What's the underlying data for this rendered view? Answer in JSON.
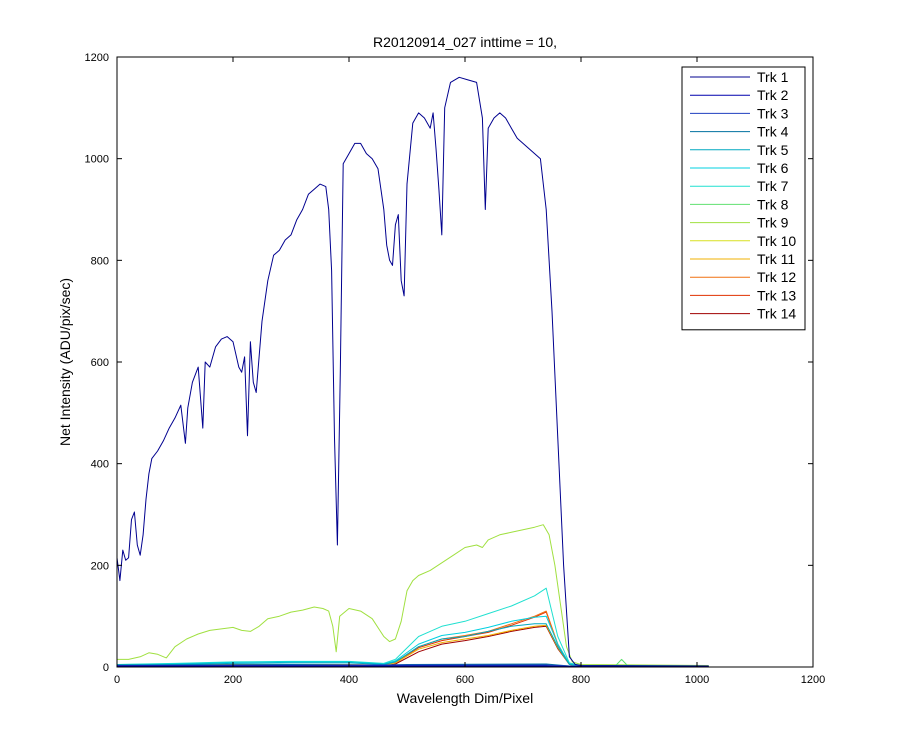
{
  "chart_data": {
    "type": "line",
    "title": "R20120914_027 inttime = 10,",
    "xlabel": "Wavelength Dim/Pixel",
    "ylabel": "Net Intensity (ADU/pix/sec)",
    "xlim": [
      0,
      1200
    ],
    "ylim": [
      0,
      1200
    ],
    "xticks": [
      "0",
      "200",
      "400",
      "600",
      "800",
      "1000",
      "1200"
    ],
    "yticks": [
      "0",
      "200",
      "400",
      "600",
      "800",
      "1000",
      "1200"
    ],
    "grid": false,
    "legend_position": "top-right",
    "series": [
      {
        "name": "Trk 1",
        "color": "#00008F",
        "points": [
          [
            0,
            215
          ],
          [
            5,
            170
          ],
          [
            10,
            230
          ],
          [
            15,
            210
          ],
          [
            20,
            215
          ],
          [
            25,
            290
          ],
          [
            30,
            305
          ],
          [
            35,
            240
          ],
          [
            40,
            220
          ],
          [
            45,
            260
          ],
          [
            50,
            330
          ],
          [
            55,
            380
          ],
          [
            60,
            410
          ],
          [
            70,
            425
          ],
          [
            80,
            445
          ],
          [
            90,
            470
          ],
          [
            100,
            490
          ],
          [
            110,
            515
          ],
          [
            118,
            440
          ],
          [
            122,
            510
          ],
          [
            130,
            560
          ],
          [
            140,
            590
          ],
          [
            148,
            470
          ],
          [
            152,
            600
          ],
          [
            160,
            590
          ],
          [
            170,
            630
          ],
          [
            180,
            645
          ],
          [
            190,
            650
          ],
          [
            200,
            640
          ],
          [
            210,
            590
          ],
          [
            215,
            580
          ],
          [
            220,
            610
          ],
          [
            225,
            455
          ],
          [
            230,
            640
          ],
          [
            235,
            560
          ],
          [
            240,
            540
          ],
          [
            250,
            680
          ],
          [
            260,
            760
          ],
          [
            270,
            810
          ],
          [
            280,
            820
          ],
          [
            290,
            840
          ],
          [
            300,
            850
          ],
          [
            310,
            880
          ],
          [
            320,
            900
          ],
          [
            330,
            930
          ],
          [
            340,
            940
          ],
          [
            350,
            950
          ],
          [
            360,
            945
          ],
          [
            365,
            900
          ],
          [
            370,
            780
          ],
          [
            375,
            450
          ],
          [
            380,
            240
          ],
          [
            385,
            580
          ],
          [
            390,
            990
          ],
          [
            400,
            1010
          ],
          [
            410,
            1030
          ],
          [
            420,
            1030
          ],
          [
            430,
            1010
          ],
          [
            440,
            1000
          ],
          [
            450,
            980
          ],
          [
            460,
            900
          ],
          [
            465,
            830
          ],
          [
            470,
            800
          ],
          [
            475,
            790
          ],
          [
            480,
            870
          ],
          [
            485,
            890
          ],
          [
            490,
            760
          ],
          [
            495,
            730
          ],
          [
            500,
            950
          ],
          [
            510,
            1070
          ],
          [
            520,
            1090
          ],
          [
            530,
            1080
          ],
          [
            540,
            1060
          ],
          [
            545,
            1090
          ],
          [
            550,
            1020
          ],
          [
            555,
            940
          ],
          [
            560,
            850
          ],
          [
            565,
            1100
          ],
          [
            575,
            1150
          ],
          [
            590,
            1160
          ],
          [
            605,
            1155
          ],
          [
            620,
            1150
          ],
          [
            630,
            1080
          ],
          [
            635,
            900
          ],
          [
            640,
            1060
          ],
          [
            650,
            1080
          ],
          [
            660,
            1090
          ],
          [
            670,
            1080
          ],
          [
            680,
            1060
          ],
          [
            690,
            1040
          ],
          [
            700,
            1030
          ],
          [
            710,
            1020
          ],
          [
            720,
            1010
          ],
          [
            730,
            1000
          ],
          [
            740,
            900
          ],
          [
            750,
            700
          ],
          [
            760,
            450
          ],
          [
            770,
            200
          ],
          [
            780,
            20
          ],
          [
            790,
            5
          ],
          [
            800,
            3
          ],
          [
            1020,
            2
          ]
        ]
      },
      {
        "name": "Trk 2",
        "color": "#0000AD",
        "points": [
          [
            0,
            2
          ],
          [
            740,
            2
          ],
          [
            780,
            1
          ],
          [
            1020,
            1
          ]
        ]
      },
      {
        "name": "Trk 3",
        "color": "#1F3FBF",
        "points": [
          [
            0,
            3
          ],
          [
            500,
            4
          ],
          [
            740,
            4
          ],
          [
            780,
            2
          ],
          [
            1020,
            2
          ]
        ]
      },
      {
        "name": "Trk 4",
        "color": "#00709F",
        "points": [
          [
            0,
            4
          ],
          [
            100,
            4
          ],
          [
            300,
            5
          ],
          [
            450,
            4
          ],
          [
            500,
            5
          ],
          [
            740,
            6
          ],
          [
            780,
            2
          ],
          [
            1020,
            2
          ]
        ]
      },
      {
        "name": "Trk 5",
        "color": "#00A8C0",
        "points": [
          [
            0,
            3
          ],
          [
            100,
            5
          ],
          [
            200,
            7
          ],
          [
            300,
            8
          ],
          [
            400,
            8
          ],
          [
            460,
            5
          ],
          [
            480,
            10
          ],
          [
            520,
            40
          ],
          [
            560,
            55
          ],
          [
            600,
            60
          ],
          [
            640,
            70
          ],
          [
            680,
            80
          ],
          [
            720,
            85
          ],
          [
            740,
            85
          ],
          [
            760,
            40
          ],
          [
            780,
            5
          ],
          [
            800,
            2
          ],
          [
            1020,
            2
          ]
        ]
      },
      {
        "name": "Trk 6",
        "color": "#00D0E0",
        "points": [
          [
            0,
            4
          ],
          [
            100,
            6
          ],
          [
            200,
            9
          ],
          [
            300,
            10
          ],
          [
            400,
            10
          ],
          [
            460,
            6
          ],
          [
            480,
            12
          ],
          [
            520,
            45
          ],
          [
            560,
            62
          ],
          [
            600,
            68
          ],
          [
            640,
            78
          ],
          [
            680,
            90
          ],
          [
            720,
            98
          ],
          [
            740,
            100
          ],
          [
            760,
            45
          ],
          [
            780,
            6
          ],
          [
            800,
            2
          ],
          [
            1020,
            2
          ]
        ]
      },
      {
        "name": "Trk 7",
        "color": "#20E0D0",
        "points": [
          [
            0,
            5
          ],
          [
            100,
            7
          ],
          [
            200,
            10
          ],
          [
            300,
            11
          ],
          [
            400,
            11
          ],
          [
            460,
            7
          ],
          [
            480,
            15
          ],
          [
            520,
            60
          ],
          [
            560,
            80
          ],
          [
            600,
            90
          ],
          [
            640,
            105
          ],
          [
            680,
            120
          ],
          [
            720,
            140
          ],
          [
            740,
            155
          ],
          [
            760,
            60
          ],
          [
            780,
            8
          ],
          [
            800,
            3
          ],
          [
            1020,
            2
          ]
        ]
      },
      {
        "name": "Trk 8",
        "color": "#60E070",
        "points": [
          [
            0,
            3
          ],
          [
            740,
            4
          ],
          [
            780,
            2
          ],
          [
            860,
            3
          ],
          [
            870,
            15
          ],
          [
            880,
            3
          ],
          [
            1020,
            2
          ]
        ]
      },
      {
        "name": "Trk 9",
        "color": "#A0E040",
        "points": [
          [
            0,
            15
          ],
          [
            20,
            15
          ],
          [
            40,
            20
          ],
          [
            55,
            28
          ],
          [
            70,
            25
          ],
          [
            85,
            18
          ],
          [
            100,
            40
          ],
          [
            120,
            55
          ],
          [
            140,
            65
          ],
          [
            160,
            72
          ],
          [
            180,
            75
          ],
          [
            200,
            78
          ],
          [
            215,
            72
          ],
          [
            230,
            70
          ],
          [
            245,
            80
          ],
          [
            260,
            95
          ],
          [
            280,
            100
          ],
          [
            300,
            108
          ],
          [
            320,
            112
          ],
          [
            340,
            118
          ],
          [
            355,
            115
          ],
          [
            365,
            110
          ],
          [
            372,
            80
          ],
          [
            378,
            30
          ],
          [
            384,
            100
          ],
          [
            400,
            115
          ],
          [
            420,
            110
          ],
          [
            440,
            95
          ],
          [
            460,
            60
          ],
          [
            470,
            50
          ],
          [
            480,
            55
          ],
          [
            490,
            90
          ],
          [
            500,
            150
          ],
          [
            510,
            170
          ],
          [
            520,
            180
          ],
          [
            540,
            190
          ],
          [
            560,
            205
          ],
          [
            580,
            220
          ],
          [
            600,
            235
          ],
          [
            620,
            240
          ],
          [
            630,
            235
          ],
          [
            640,
            250
          ],
          [
            660,
            260
          ],
          [
            680,
            265
          ],
          [
            700,
            270
          ],
          [
            720,
            275
          ],
          [
            735,
            280
          ],
          [
            745,
            260
          ],
          [
            755,
            200
          ],
          [
            765,
            120
          ],
          [
            775,
            40
          ],
          [
            785,
            10
          ],
          [
            800,
            5
          ],
          [
            1020,
            3
          ]
        ]
      },
      {
        "name": "Trk 10",
        "color": "#D8E020",
        "points": [
          [
            0,
            4
          ],
          [
            740,
            4
          ],
          [
            780,
            2
          ],
          [
            1020,
            2
          ]
        ]
      },
      {
        "name": "Trk 11",
        "color": "#F0B000",
        "points": [
          [
            0,
            3
          ],
          [
            100,
            4
          ],
          [
            300,
            5
          ],
          [
            460,
            4
          ],
          [
            480,
            8
          ],
          [
            520,
            35
          ],
          [
            560,
            48
          ],
          [
            600,
            55
          ],
          [
            640,
            62
          ],
          [
            680,
            72
          ],
          [
            720,
            80
          ],
          [
            740,
            82
          ],
          [
            760,
            38
          ],
          [
            780,
            5
          ],
          [
            800,
            2
          ],
          [
            1020,
            2
          ]
        ]
      },
      {
        "name": "Trk 12",
        "color": "#F07010",
        "points": [
          [
            0,
            3
          ],
          [
            100,
            4
          ],
          [
            300,
            5
          ],
          [
            460,
            4
          ],
          [
            480,
            9
          ],
          [
            520,
            40
          ],
          [
            560,
            55
          ],
          [
            600,
            62
          ],
          [
            640,
            70
          ],
          [
            680,
            85
          ],
          [
            720,
            100
          ],
          [
            740,
            110
          ],
          [
            760,
            45
          ],
          [
            780,
            6
          ],
          [
            800,
            2
          ],
          [
            1020,
            2
          ]
        ]
      },
      {
        "name": "Trk 13",
        "color": "#E03000",
        "points": [
          [
            0,
            3
          ],
          [
            100,
            4
          ],
          [
            300,
            5
          ],
          [
            460,
            4
          ],
          [
            480,
            9
          ],
          [
            520,
            38
          ],
          [
            560,
            52
          ],
          [
            600,
            60
          ],
          [
            640,
            68
          ],
          [
            680,
            82
          ],
          [
            720,
            98
          ],
          [
            740,
            108
          ],
          [
            760,
            44
          ],
          [
            780,
            6
          ],
          [
            800,
            2
          ],
          [
            1020,
            2
          ]
        ]
      },
      {
        "name": "Trk 14",
        "color": "#A00000",
        "points": [
          [
            0,
            2
          ],
          [
            460,
            2
          ],
          [
            480,
            6
          ],
          [
            520,
            30
          ],
          [
            560,
            45
          ],
          [
            600,
            52
          ],
          [
            640,
            60
          ],
          [
            680,
            70
          ],
          [
            720,
            78
          ],
          [
            740,
            80
          ],
          [
            760,
            36
          ],
          [
            780,
            5
          ],
          [
            800,
            1
          ],
          [
            1020,
            1
          ]
        ]
      }
    ]
  }
}
